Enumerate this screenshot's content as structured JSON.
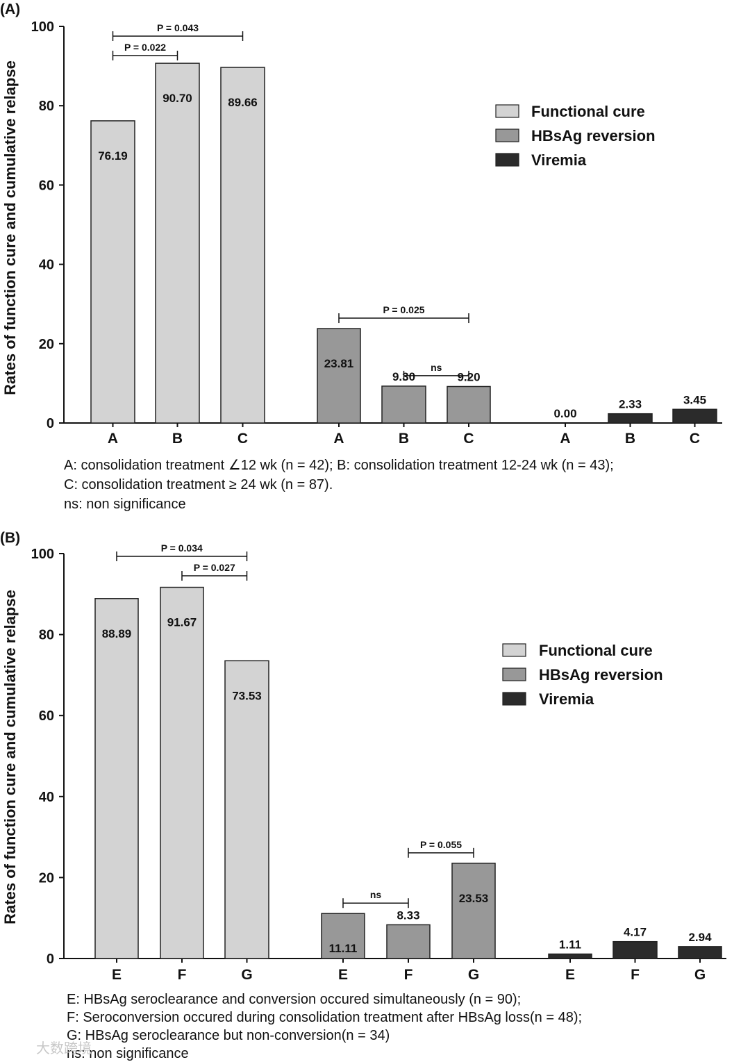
{
  "colors": {
    "functional_cure": "#d3d3d3",
    "hbsag_reversion": "#989898",
    "viremia": "#2b2b2b",
    "outline": "#222222"
  },
  "legend_labels": [
    "Functional cure",
    "HBsAg reversion",
    "Viremia"
  ],
  "watermark": "大数跨境",
  "chart_data": [
    {
      "type": "bar",
      "panel_label": "(A)",
      "ylabel": "Rates of function cure and cumulative relapse",
      "ylim": [
        0,
        100
      ],
      "yticks": [
        0,
        20,
        40,
        60,
        80,
        100
      ],
      "categories": [
        "A",
        "B",
        "C"
      ],
      "legend_position": "top-right",
      "series": [
        {
          "name": "Functional cure",
          "values": [
            76.19,
            90.7,
            89.66
          ],
          "labels": [
            "76.19",
            "90.70",
            "89.66"
          ]
        },
        {
          "name": "HBsAg reversion",
          "values": [
            23.81,
            9.3,
            9.2
          ],
          "labels": [
            "23.81",
            "9.30",
            "9.20"
          ]
        },
        {
          "name": "Viremia",
          "values": [
            0.0,
            2.33,
            3.45
          ],
          "labels": [
            "0.00",
            "2.33",
            "3.45"
          ]
        }
      ],
      "comparisons": [
        {
          "series": 0,
          "from": 0,
          "to": 2,
          "label": "P = 0.043",
          "level": 2
        },
        {
          "series": 0,
          "from": 0,
          "to": 1,
          "label": "P = 0.022",
          "level": 1
        },
        {
          "series": 1,
          "from": 0,
          "to": 2,
          "label": "P = 0.025",
          "level": 1
        },
        {
          "series": 1,
          "from": 1,
          "to": 2,
          "label": "ns",
          "level": 1
        }
      ],
      "notes": [
        "A: consolidation treatment  ∠12 wk  (n = 42); B: consolidation treatment 12-24 wk  (n = 43);",
        "C: consolidation treatment  ≥ 24 wk (n = 87).",
        "ns: non significance"
      ]
    },
    {
      "type": "bar",
      "panel_label": "(B)",
      "ylabel": "Rates of function cure and cumulative relapse",
      "ylim": [
        0,
        100
      ],
      "yticks": [
        0,
        20,
        40,
        60,
        80,
        100
      ],
      "categories": [
        "E",
        "F",
        "G"
      ],
      "legend_position": "right",
      "series": [
        {
          "name": "Functional cure",
          "values": [
            88.89,
            91.67,
            73.53
          ],
          "labels": [
            "88.89",
            "91.67",
            "73.53"
          ]
        },
        {
          "name": "HBsAg reversion",
          "values": [
            11.11,
            8.33,
            23.53
          ],
          "labels": [
            "11.11",
            "8.33",
            "23.53"
          ]
        },
        {
          "name": "Viremia",
          "values": [
            1.11,
            4.17,
            2.94
          ],
          "labels": [
            "1.11",
            "4.17",
            "2.94"
          ]
        }
      ],
      "comparisons": [
        {
          "series": 0,
          "from": 0,
          "to": 2,
          "label": "P = 0.034",
          "level": 2
        },
        {
          "series": 0,
          "from": 1,
          "to": 2,
          "label": "P = 0.027",
          "level": 1
        },
        {
          "series": 1,
          "from": 0,
          "to": 1,
          "label": "ns",
          "level": 1
        },
        {
          "series": 1,
          "from": 1,
          "to": 2,
          "label": "P = 0.055",
          "level": 1
        }
      ],
      "notes": [
        "E:  HBsAg seroclearance and conversion occured simultaneously (n = 90);",
        "F: Seroconversion occured during consolidation treatment after HBsAg loss(n = 48);",
        "G: HBsAg seroclearance but non-conversion(n = 34)",
        "ns: non significance"
      ]
    }
  ]
}
